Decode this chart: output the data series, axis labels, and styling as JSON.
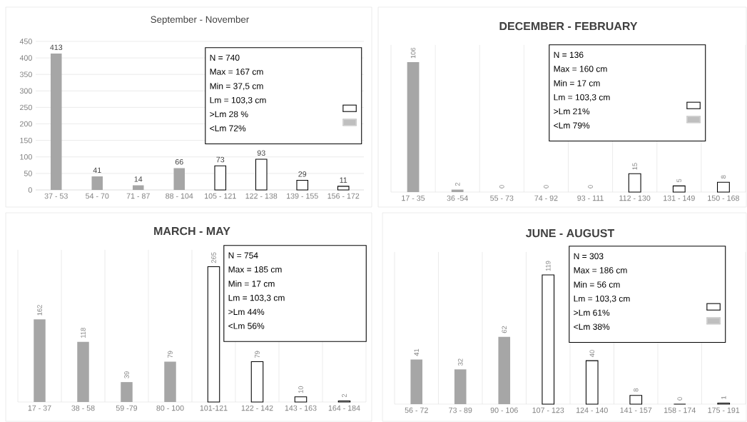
{
  "chart_data": [
    {
      "type": "bar",
      "title": "September - November",
      "categories": [
        "37 - 53",
        "54 - 70",
        "71 - 87",
        "88 - 104",
        "105 - 121",
        "122 - 138",
        "139 - 155",
        "156 - 172"
      ],
      "values": [
        413,
        41,
        14,
        66,
        73,
        93,
        29,
        11
      ],
      "colors": [
        "#a6a6a6",
        "#a6a6a6",
        "#a6a6a6",
        "#a6a6a6",
        "#ffffff",
        "#ffffff",
        "#ffffff",
        "#ffffff"
      ],
      "ylim": [
        0,
        450
      ],
      "yticks": [
        0,
        50,
        100,
        150,
        200,
        250,
        300,
        350,
        400,
        450
      ],
      "grid": "y",
      "data_labels": true,
      "annotations": [
        "N = 740",
        "Max = 167 cm",
        "Min  = 37,5 cm",
        "Lm = 103,3 cm",
        ">Lm 28 %",
        "<Lm 72%"
      ]
    },
    {
      "type": "bar",
      "title": "DECEMBER  - FEBRUARY",
      "categories": [
        "17 - 35",
        "36 -54",
        "55 - 73",
        "74 - 92",
        "93 - 111",
        "112 - 130",
        "131 - 149",
        "150 - 168"
      ],
      "values": [
        106,
        2,
        0,
        0,
        0,
        15,
        5,
        8
      ],
      "colors": [
        "#a6a6a6",
        "#a6a6a6",
        "#a6a6a6",
        "#a6a6a6",
        "#a6a6a6",
        "#ffffff",
        "#ffffff",
        "#ffffff"
      ],
      "ylim": [
        0,
        120
      ],
      "grid": "x",
      "data_labels": true,
      "tick_labels": "x",
      "annotations": [
        "N = 136",
        "Max = 160 cm",
        "Min = 17 cm",
        "Lm = 103,3 cm",
        ">Lm 21%",
        "<Lm 79%"
      ]
    },
    {
      "type": "bar",
      "title": "MARCH  - MAY",
      "categories": [
        "17 - 37",
        "38 - 58",
        "59 -79",
        "80 - 100",
        "101-121",
        "122 - 142",
        "143 - 163",
        "164 - 184"
      ],
      "values": [
        162,
        118,
        39,
        79,
        265,
        79,
        10,
        2
      ],
      "colors": [
        "#a6a6a6",
        "#a6a6a6",
        "#a6a6a6",
        "#a6a6a6",
        "#ffffff",
        "#ffffff",
        "#ffffff",
        "#ffffff"
      ],
      "ylim": [
        0,
        298
      ],
      "grid": "x",
      "data_labels": true,
      "tick_labels": "x",
      "annotations": [
        "N = 754",
        "Max = 185 cm",
        "Min  = 17 cm",
        "Lm = 103,3 cm",
        ">Lm 44%",
        "<Lm 56%"
      ]
    },
    {
      "type": "bar",
      "title": "JUNE - AUGUST",
      "categories": [
        "56 - 72",
        "73 - 89",
        "90 - 106",
        "107 - 123",
        "124 - 140",
        "141 - 157",
        "158 - 174",
        "175 - 191"
      ],
      "values": [
        41,
        32,
        62,
        119,
        40,
        8,
        0,
        1
      ],
      "colors": [
        "#a6a6a6",
        "#a6a6a6",
        "#a6a6a6",
        "#ffffff",
        "#ffffff",
        "#ffffff",
        "#ffffff",
        "#ffffff"
      ],
      "ylim": [
        0,
        140
      ],
      "grid": "x",
      "data_labels": true,
      "tick_labels": "x",
      "annotations": [
        "N = 303",
        "Max = 186 cm",
        "Min  = 56 cm",
        "Lm = 103,3 cm",
        ">Lm 61%",
        "<Lm 38%"
      ]
    }
  ]
}
